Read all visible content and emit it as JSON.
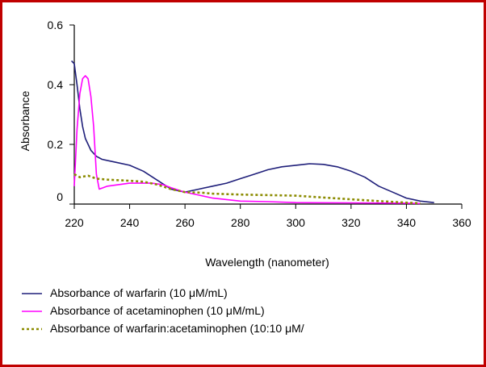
{
  "chart_data": {
    "type": "line",
    "title": "",
    "xlabel": "Wavelength (nanometer)",
    "ylabel": "Absorbance",
    "xlim": [
      220,
      360
    ],
    "ylim": [
      0,
      0.6
    ],
    "x_ticks": [
      220,
      240,
      260,
      280,
      300,
      320,
      340,
      360
    ],
    "y_ticks": [
      0,
      0.2,
      0.4,
      0.6
    ],
    "y_tick_labels": [
      "0",
      "0.2",
      "0.4",
      "0.6"
    ],
    "grid": false,
    "legend_position": "bottom",
    "series": [
      {
        "name": "Absorbance of warfarin (10 μM/mL)",
        "color": "#1f1f7a",
        "style": "solid",
        "points": [
          [
            219,
            0.48
          ],
          [
            220,
            0.47
          ],
          [
            221,
            0.4
          ],
          [
            222,
            0.32
          ],
          [
            223,
            0.26
          ],
          [
            224,
            0.22
          ],
          [
            226,
            0.18
          ],
          [
            228,
            0.16
          ],
          [
            230,
            0.15
          ],
          [
            235,
            0.14
          ],
          [
            240,
            0.13
          ],
          [
            245,
            0.11
          ],
          [
            250,
            0.08
          ],
          [
            255,
            0.05
          ],
          [
            260,
            0.04
          ],
          [
            265,
            0.05
          ],
          [
            270,
            0.06
          ],
          [
            275,
            0.07
          ],
          [
            280,
            0.085
          ],
          [
            285,
            0.1
          ],
          [
            290,
            0.115
          ],
          [
            295,
            0.125
          ],
          [
            300,
            0.13
          ],
          [
            305,
            0.135
          ],
          [
            310,
            0.133
          ],
          [
            315,
            0.125
          ],
          [
            320,
            0.11
          ],
          [
            325,
            0.09
          ],
          [
            330,
            0.06
          ],
          [
            335,
            0.04
          ],
          [
            340,
            0.02
          ],
          [
            345,
            0.01
          ],
          [
            350,
            0.005
          ]
        ]
      },
      {
        "name": "Absorbance of acetaminophen (10 μM/mL)",
        "color": "#ff00ff",
        "style": "solid",
        "points": [
          [
            220,
            0.06
          ],
          [
            221,
            0.25
          ],
          [
            222,
            0.37
          ],
          [
            223,
            0.42
          ],
          [
            224,
            0.43
          ],
          [
            225,
            0.42
          ],
          [
            226,
            0.36
          ],
          [
            227,
            0.26
          ],
          [
            228,
            0.1
          ],
          [
            229,
            0.05
          ],
          [
            232,
            0.06
          ],
          [
            240,
            0.07
          ],
          [
            248,
            0.07
          ],
          [
            252,
            0.065
          ],
          [
            255,
            0.055
          ],
          [
            260,
            0.04
          ],
          [
            265,
            0.03
          ],
          [
            270,
            0.02
          ],
          [
            280,
            0.01
          ],
          [
            290,
            0.008
          ],
          [
            300,
            0.005
          ],
          [
            320,
            0.004
          ],
          [
            340,
            0.003
          ],
          [
            345,
            0.002
          ]
        ]
      },
      {
        "name": "Absorbance of warfarin:acetaminophen (10:10 μM/",
        "color": "#8b8b00",
        "style": "dotted",
        "points": [
          [
            220,
            0.1
          ],
          [
            222,
            0.09
          ],
          [
            225,
            0.095
          ],
          [
            228,
            0.085
          ],
          [
            232,
            0.082
          ],
          [
            240,
            0.078
          ],
          [
            245,
            0.075
          ],
          [
            250,
            0.065
          ],
          [
            255,
            0.05
          ],
          [
            260,
            0.04
          ],
          [
            266,
            0.038
          ],
          [
            270,
            0.035
          ],
          [
            280,
            0.032
          ],
          [
            290,
            0.03
          ],
          [
            300,
            0.028
          ],
          [
            310,
            0.022
          ],
          [
            320,
            0.016
          ],
          [
            330,
            0.01
          ],
          [
            340,
            0.005
          ],
          [
            345,
            0.003
          ]
        ]
      }
    ]
  }
}
